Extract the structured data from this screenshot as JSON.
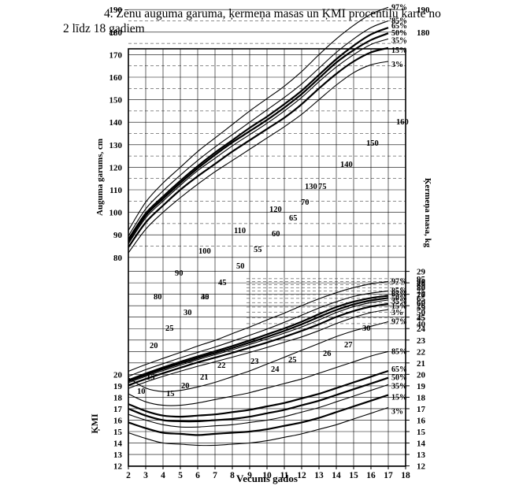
{
  "title_line1": "4. Zēnu auguma garuma, ķermeņa masas un ĶMI procentiļu karte no",
  "title_line2": "2 līdz 18 gadiem",
  "chart_data": {
    "type": "line",
    "xlabel": "Vecums gados",
    "x_ticks": [
      "2",
      "3",
      "4",
      "5",
      "6",
      "7",
      "8",
      "9",
      "10",
      "11",
      "12",
      "13",
      "14",
      "15",
      "16",
      "17",
      "18"
    ],
    "xlim": [
      2,
      18
    ],
    "grid": true,
    "height": {
      "ylabel": "Auguma garums, cm",
      "ylim": [
        77,
        193
      ],
      "ticks_left": [
        "80",
        "90",
        "100",
        "110",
        "120",
        "130",
        "140",
        "150",
        "160",
        "170",
        "180",
        "190"
      ],
      "ticks_right": [
        "180",
        "190"
      ],
      "x": [
        2,
        3,
        4,
        5,
        6,
        7,
        8,
        9,
        10,
        11,
        12,
        13,
        14,
        15,
        16,
        17
      ],
      "series": [
        {
          "name": "97%",
          "values": [
            92,
            104.5,
            113,
            120,
            127,
            133,
            139,
            145,
            150.5,
            156,
            162.5,
            170,
            177,
            183,
            188,
            191
          ]
        },
        {
          "name": "85%",
          "values": [
            89.5,
            101.5,
            109.5,
            116.5,
            123,
            129,
            134.5,
            140,
            145.5,
            151,
            157,
            164,
            171,
            177,
            182,
            185
          ]
        },
        {
          "name": "65%",
          "values": [
            88,
            99.5,
            107,
            114,
            120.5,
            126.5,
            132,
            137.5,
            142.5,
            148,
            154,
            161,
            168,
            174,
            179,
            182
          ]
        },
        {
          "name": "50%",
          "values": [
            87,
            98.5,
            106,
            113,
            119.5,
            125.5,
            131,
            136,
            141,
            146.5,
            152.5,
            159.5,
            166.5,
            172,
            176.5,
            179.5
          ]
        },
        {
          "name": "35%",
          "values": [
            86,
            97.5,
            105,
            112,
            118.5,
            124,
            129.5,
            134.5,
            139.5,
            145,
            151,
            158,
            164.5,
            170,
            174.5,
            177
          ]
        },
        {
          "name": "15%",
          "values": [
            84.5,
            95.5,
            103,
            110,
            116,
            121.5,
            127,
            132,
            137,
            142,
            148,
            155,
            161.5,
            167,
            171,
            173
          ]
        },
        {
          "name": "3%",
          "values": [
            82,
            92.5,
            100,
            106.5,
            112.5,
            118,
            123,
            128,
            133,
            138,
            143.5,
            150,
            156.5,
            162,
            165.5,
            167
          ]
        }
      ],
      "diagonal_labels": [
        "80",
        "90",
        "100",
        "110",
        "120",
        "130",
        "140",
        "150",
        "160"
      ]
    },
    "weight": {
      "ylabel": "Ķermeņa masa, kg",
      "ticks_right": [
        "40",
        "45",
        "50",
        "55",
        "60",
        "65",
        "70",
        "75",
        "80",
        "85",
        "90",
        "95"
      ],
      "x": [
        2,
        3,
        4,
        5,
        6,
        7,
        8,
        9,
        10,
        11,
        12,
        13,
        14,
        15,
        16,
        17
      ],
      "series": [
        {
          "name": "97%",
          "values": [
            16,
            18.2,
            20.5,
            23,
            26,
            29,
            33,
            37.5,
            43,
            49,
            56.5,
            64.5,
            72.5,
            80,
            86,
            90
          ]
        },
        {
          "name": "85%",
          "values": [
            14.5,
            16.5,
            18.5,
            20.7,
            23,
            25.5,
            28.5,
            32,
            36,
            41,
            47,
            54,
            61,
            67.5,
            72,
            75
          ]
        },
        {
          "name": "65%",
          "values": [
            13.5,
            15.3,
            17.2,
            19.2,
            21.3,
            23.5,
            26,
            29,
            32.5,
            36.5,
            41.5,
            48,
            55,
            61,
            65.5,
            68.5
          ]
        },
        {
          "name": "50%",
          "values": [
            13.2,
            14.9,
            16.7,
            18.6,
            20.6,
            22.7,
            25,
            27.8,
            31,
            34.8,
            39.5,
            45.5,
            52,
            58,
            62.5,
            65.5
          ]
        },
        {
          "name": "35%",
          "values": [
            12.8,
            14.5,
            16.2,
            18,
            20,
            22,
            24.2,
            26.8,
            29.8,
            33.3,
            37.5,
            43,
            49.5,
            55.5,
            60,
            63
          ]
        },
        {
          "name": "15%",
          "values": [
            12.2,
            13.8,
            15.4,
            17.1,
            19,
            20.8,
            22.8,
            25.2,
            27.8,
            31,
            34.8,
            39.5,
            45.5,
            51,
            55.5,
            58.5
          ]
        },
        {
          "name": "3%",
          "values": [
            11.5,
            13,
            14.5,
            16,
            17.6,
            19.2,
            21,
            23,
            25.3,
            28,
            31,
            35,
            40,
            45,
            49.5,
            52.5
          ]
        }
      ],
      "lower_labels": [
        "10",
        "15",
        "20",
        "25",
        "30",
        "35"
      ]
    },
    "bmi": {
      "ylabel": "ĶMI",
      "ylim": [
        12,
        29
      ],
      "ticks_left": [
        "12",
        "13",
        "14",
        "15",
        "16",
        "17",
        "18",
        "19",
        "20"
      ],
      "ticks_right": [
        "12",
        "13",
        "14",
        "15",
        "16",
        "17",
        "18",
        "19",
        "20",
        "21",
        "22",
        "23",
        "24",
        "25",
        "26",
        "27",
        "28",
        "29"
      ],
      "x": [
        2,
        3,
        4,
        5,
        6,
        7,
        8,
        9,
        10,
        11,
        12,
        13,
        14,
        15,
        16,
        17
      ],
      "series": [
        {
          "name": "97%",
          "values": [
            19.7,
            18.8,
            18.5,
            18.6,
            18.9,
            19.3,
            19.8,
            20.3,
            20.9,
            21.5,
            22.1,
            22.7,
            23.3,
            23.8,
            24.2,
            24.6
          ]
        },
        {
          "name": "85%",
          "values": [
            18.3,
            17.6,
            17.3,
            17.3,
            17.5,
            17.8,
            18.1,
            18.4,
            18.8,
            19.2,
            19.6,
            20.1,
            20.6,
            21.1,
            21.6,
            22
          ]
        },
        {
          "name": "65%",
          "values": [
            17.4,
            16.8,
            16.4,
            16.3,
            16.4,
            16.5,
            16.7,
            16.9,
            17.2,
            17.5,
            17.9,
            18.3,
            18.8,
            19.3,
            19.8,
            20.3
          ]
        },
        {
          "name": "50%",
          "values": [
            17,
            16.4,
            16,
            15.9,
            15.9,
            16,
            16.1,
            16.3,
            16.6,
            16.9,
            17.3,
            17.7,
            18.2,
            18.7,
            19.2,
            19.7
          ]
        },
        {
          "name": "35%",
          "values": [
            16.5,
            16,
            15.6,
            15.4,
            15.4,
            15.5,
            15.6,
            15.8,
            16,
            16.3,
            16.7,
            17.1,
            17.6,
            18.1,
            18.6,
            19.1
          ]
        },
        {
          "name": "15%",
          "values": [
            15.8,
            15.3,
            14.9,
            14.8,
            14.7,
            14.8,
            14.9,
            15,
            15.2,
            15.5,
            15.8,
            16.2,
            16.7,
            17.2,
            17.7,
            18.2
          ]
        },
        {
          "name": "3%",
          "values": [
            14.9,
            14.4,
            14,
            13.9,
            13.8,
            13.8,
            13.9,
            14,
            14.2,
            14.5,
            14.8,
            15.2,
            15.6,
            16.1,
            16.6,
            17.1
          ]
        }
      ],
      "diagonal_labels": [
        "10",
        "15",
        "20",
        "21",
        "22",
        "23",
        "24",
        "25",
        "26",
        "27",
        "30"
      ]
    }
  }
}
